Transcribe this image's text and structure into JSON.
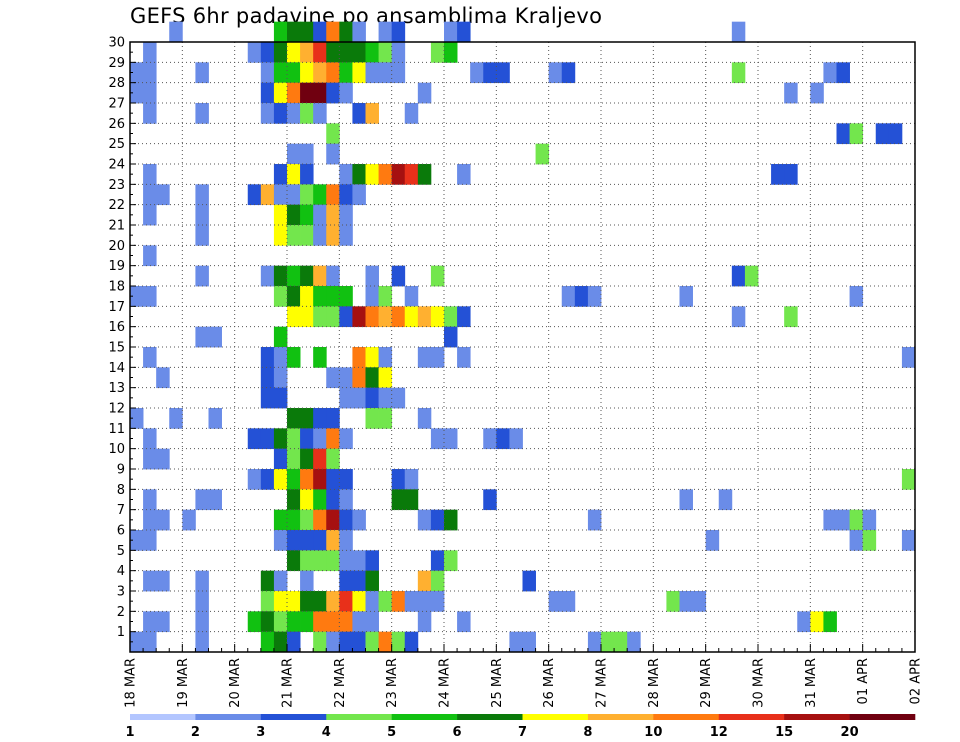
{
  "chart_data": {
    "type": "heatmap",
    "title": "GEFS 6hr padavine po ansamblima Kraljevo",
    "xlabel": "",
    "ylabel": "",
    "x_ticks": [
      "18 MAR",
      "19 MAR",
      "20 MAR",
      "21 MAR",
      "22 MAR",
      "23 MAR",
      "24 MAR",
      "25 MAR",
      "26 MAR",
      "27 MAR",
      "28 MAR",
      "29 MAR",
      "30 MAR",
      "31 MAR",
      "01 APR",
      "02 APR"
    ],
    "x_steps_per_day": 4,
    "x_range": [
      0,
      60
    ],
    "y_ticks": [
      "1",
      "2",
      "3",
      "4",
      "5",
      "6",
      "7",
      "8",
      "9",
      "10",
      "11",
      "12",
      "13",
      "14",
      "15",
      "16",
      "17",
      "18",
      "19",
      "20",
      "21",
      "22",
      "23",
      "24",
      "25",
      "26",
      "27",
      "28",
      "29",
      "30"
    ],
    "y_range": [
      0,
      30
    ],
    "grid": true,
    "colorbar": {
      "labels": [
        "1",
        "2",
        "3",
        "4",
        "5",
        "6",
        "7",
        "8",
        "10",
        "12",
        "15",
        "20"
      ],
      "colors": [
        "#b3c6ff",
        "#6a8ce8",
        "#2451d6",
        "#73e64d",
        "#11c111",
        "#0a7a0a",
        "#ffff00",
        "#ffb030",
        "#ff7a10",
        "#e8301a",
        "#a61010",
        "#700010"
      ]
    },
    "cells": [
      [
        3,
        30,
        1
      ],
      [
        11,
        30,
        4
      ],
      [
        12,
        30,
        5
      ],
      [
        13,
        30,
        5
      ],
      [
        14,
        30,
        2
      ],
      [
        15,
        30,
        8
      ],
      [
        16,
        30,
        5
      ],
      [
        17,
        30,
        1
      ],
      [
        19,
        30,
        1
      ],
      [
        20,
        30,
        2
      ],
      [
        24,
        30,
        1
      ],
      [
        25,
        30,
        2
      ],
      [
        46,
        30,
        1
      ],
      [
        1,
        29,
        1
      ],
      [
        9,
        29,
        1
      ],
      [
        10,
        29,
        2
      ],
      [
        11,
        29,
        5
      ],
      [
        12,
        29,
        6
      ],
      [
        13,
        29,
        7
      ],
      [
        14,
        29,
        9
      ],
      [
        15,
        29,
        5
      ],
      [
        16,
        29,
        5
      ],
      [
        17,
        29,
        5
      ],
      [
        18,
        29,
        4
      ],
      [
        19,
        29,
        3
      ],
      [
        20,
        29,
        1
      ],
      [
        23,
        29,
        3
      ],
      [
        24,
        29,
        4
      ],
      [
        0,
        28,
        1
      ],
      [
        1,
        28,
        1
      ],
      [
        5,
        28,
        1
      ],
      [
        10,
        28,
        1
      ],
      [
        11,
        28,
        4
      ],
      [
        12,
        28,
        4
      ],
      [
        13,
        28,
        6
      ],
      [
        14,
        28,
        7
      ],
      [
        15,
        28,
        8
      ],
      [
        16,
        28,
        4
      ],
      [
        17,
        28,
        6
      ],
      [
        18,
        28,
        1
      ],
      [
        19,
        28,
        1
      ],
      [
        20,
        28,
        1
      ],
      [
        26,
        28,
        1
      ],
      [
        27,
        28,
        2
      ],
      [
        28,
        28,
        2
      ],
      [
        32,
        28,
        1
      ],
      [
        33,
        28,
        2
      ],
      [
        46,
        28,
        3
      ],
      [
        53,
        28,
        1
      ],
      [
        54,
        28,
        2
      ],
      [
        0,
        27,
        1
      ],
      [
        1,
        27,
        1
      ],
      [
        10,
        27,
        2
      ],
      [
        11,
        27,
        6
      ],
      [
        12,
        27,
        8
      ],
      [
        13,
        27,
        11
      ],
      [
        14,
        27,
        11
      ],
      [
        15,
        27,
        2
      ],
      [
        16,
        27,
        1
      ],
      [
        22,
        27,
        1
      ],
      [
        50,
        27,
        1
      ],
      [
        52,
        27,
        1
      ],
      [
        1,
        26,
        1
      ],
      [
        5,
        26,
        1
      ],
      [
        10,
        26,
        1
      ],
      [
        11,
        26,
        2
      ],
      [
        12,
        26,
        1
      ],
      [
        13,
        26,
        3
      ],
      [
        14,
        26,
        1
      ],
      [
        17,
        26,
        2
      ],
      [
        18,
        26,
        7
      ],
      [
        21,
        26,
        1
      ],
      [
        15,
        25,
        3
      ],
      [
        54,
        25,
        2
      ],
      [
        55,
        25,
        3
      ],
      [
        57,
        25,
        2
      ],
      [
        58,
        25,
        2
      ],
      [
        12,
        24,
        1
      ],
      [
        13,
        24,
        1
      ],
      [
        15,
        24,
        1
      ],
      [
        31,
        24,
        3
      ],
      [
        1,
        23,
        1
      ],
      [
        11,
        23,
        2
      ],
      [
        12,
        23,
        6
      ],
      [
        13,
        23,
        2
      ],
      [
        16,
        23,
        1
      ],
      [
        17,
        23,
        5
      ],
      [
        18,
        23,
        6
      ],
      [
        19,
        23,
        8
      ],
      [
        20,
        23,
        10
      ],
      [
        21,
        23,
        9
      ],
      [
        22,
        23,
        5
      ],
      [
        25,
        23,
        1
      ],
      [
        49,
        23,
        2
      ],
      [
        50,
        23,
        2
      ],
      [
        1,
        22,
        1
      ],
      [
        2,
        22,
        1
      ],
      [
        5,
        22,
        1
      ],
      [
        9,
        22,
        2
      ],
      [
        10,
        22,
        7
      ],
      [
        11,
        22,
        1
      ],
      [
        12,
        22,
        1
      ],
      [
        13,
        22,
        3
      ],
      [
        14,
        22,
        4
      ],
      [
        15,
        22,
        8
      ],
      [
        16,
        22,
        2
      ],
      [
        17,
        22,
        1
      ],
      [
        1,
        21,
        1
      ],
      [
        5,
        21,
        1
      ],
      [
        11,
        21,
        6
      ],
      [
        12,
        21,
        5
      ],
      [
        13,
        21,
        4
      ],
      [
        14,
        21,
        1
      ],
      [
        15,
        21,
        7
      ],
      [
        16,
        21,
        1
      ],
      [
        5,
        20,
        1
      ],
      [
        11,
        20,
        6
      ],
      [
        12,
        20,
        3
      ],
      [
        13,
        20,
        3
      ],
      [
        14,
        20,
        1
      ],
      [
        15,
        20,
        7
      ],
      [
        16,
        20,
        1
      ],
      [
        1,
        19,
        1
      ],
      [
        5,
        18,
        1
      ],
      [
        10,
        18,
        1
      ],
      [
        11,
        18,
        5
      ],
      [
        12,
        18,
        4
      ],
      [
        13,
        18,
        5
      ],
      [
        14,
        18,
        7
      ],
      [
        15,
        18,
        1
      ],
      [
        18,
        18,
        1
      ],
      [
        20,
        18,
        2
      ],
      [
        23,
        18,
        3
      ],
      [
        46,
        18,
        2
      ],
      [
        47,
        18,
        3
      ],
      [
        0,
        17,
        1
      ],
      [
        1,
        17,
        1
      ],
      [
        11,
        17,
        3
      ],
      [
        12,
        17,
        5
      ],
      [
        13,
        17,
        6
      ],
      [
        14,
        17,
        4
      ],
      [
        15,
        17,
        4
      ],
      [
        16,
        17,
        4
      ],
      [
        18,
        17,
        1
      ],
      [
        19,
        17,
        3
      ],
      [
        21,
        17,
        1
      ],
      [
        33,
        17,
        1
      ],
      [
        34,
        17,
        2
      ],
      [
        35,
        17,
        1
      ],
      [
        42,
        17,
        1
      ],
      [
        55,
        17,
        1
      ],
      [
        12,
        16,
        6
      ],
      [
        13,
        16,
        6
      ],
      [
        14,
        16,
        3
      ],
      [
        15,
        16,
        3
      ],
      [
        16,
        16,
        2
      ],
      [
        17,
        16,
        10
      ],
      [
        18,
        16,
        8
      ],
      [
        19,
        16,
        7
      ],
      [
        20,
        16,
        8
      ],
      [
        21,
        16,
        6
      ],
      [
        22,
        16,
        7
      ],
      [
        23,
        16,
        6
      ],
      [
        24,
        16,
        3
      ],
      [
        25,
        16,
        2
      ],
      [
        46,
        16,
        1
      ],
      [
        50,
        16,
        3
      ],
      [
        5,
        15,
        1
      ],
      [
        6,
        15,
        1
      ],
      [
        11,
        15,
        4
      ],
      [
        24,
        15,
        2
      ],
      [
        1,
        14,
        1
      ],
      [
        10,
        14,
        2
      ],
      [
        11,
        14,
        1
      ],
      [
        12,
        14,
        4
      ],
      [
        14,
        14,
        4
      ],
      [
        17,
        14,
        8
      ],
      [
        18,
        14,
        6
      ],
      [
        19,
        14,
        1
      ],
      [
        22,
        14,
        1
      ],
      [
        23,
        14,
        1
      ],
      [
        25,
        14,
        1
      ],
      [
        59,
        14,
        1
      ],
      [
        2,
        13,
        1
      ],
      [
        10,
        13,
        2
      ],
      [
        11,
        13,
        1
      ],
      [
        15,
        13,
        1
      ],
      [
        16,
        13,
        1
      ],
      [
        17,
        13,
        8
      ],
      [
        18,
        13,
        5
      ],
      [
        19,
        13,
        6
      ],
      [
        10,
        12,
        2
      ],
      [
        11,
        12,
        2
      ],
      [
        16,
        12,
        1
      ],
      [
        17,
        12,
        1
      ],
      [
        18,
        12,
        2
      ],
      [
        19,
        12,
        1
      ],
      [
        20,
        12,
        1
      ],
      [
        0,
        11,
        1
      ],
      [
        3,
        11,
        1
      ],
      [
        6,
        11,
        1
      ],
      [
        12,
        11,
        5
      ],
      [
        13,
        11,
        5
      ],
      [
        14,
        11,
        2
      ],
      [
        15,
        11,
        2
      ],
      [
        18,
        11,
        3
      ],
      [
        19,
        11,
        3
      ],
      [
        22,
        11,
        1
      ],
      [
        1,
        10,
        1
      ],
      [
        9,
        10,
        2
      ],
      [
        10,
        10,
        2
      ],
      [
        11,
        10,
        5
      ],
      [
        12,
        10,
        3
      ],
      [
        13,
        10,
        2
      ],
      [
        14,
        10,
        1
      ],
      [
        15,
        10,
        8
      ],
      [
        16,
        10,
        1
      ],
      [
        23,
        10,
        1
      ],
      [
        24,
        10,
        1
      ],
      [
        27,
        10,
        1
      ],
      [
        28,
        10,
        2
      ],
      [
        29,
        10,
        1
      ],
      [
        1,
        9,
        1
      ],
      [
        2,
        9,
        1
      ],
      [
        11,
        9,
        2
      ],
      [
        12,
        9,
        3
      ],
      [
        13,
        9,
        5
      ],
      [
        14,
        9,
        9
      ],
      [
        15,
        9,
        3
      ],
      [
        9,
        8,
        1
      ],
      [
        10,
        8,
        2
      ],
      [
        11,
        8,
        6
      ],
      [
        12,
        8,
        4
      ],
      [
        13,
        8,
        8
      ],
      [
        14,
        8,
        10
      ],
      [
        15,
        8,
        2
      ],
      [
        16,
        8,
        2
      ],
      [
        20,
        8,
        2
      ],
      [
        21,
        8,
        1
      ],
      [
        59,
        8,
        3
      ],
      [
        1,
        7,
        1
      ],
      [
        5,
        7,
        1
      ],
      [
        6,
        7,
        1
      ],
      [
        12,
        7,
        5
      ],
      [
        13,
        7,
        6
      ],
      [
        14,
        7,
        4
      ],
      [
        15,
        7,
        2
      ],
      [
        16,
        7,
        1
      ],
      [
        20,
        7,
        5
      ],
      [
        21,
        7,
        5
      ],
      [
        27,
        7,
        2
      ],
      [
        42,
        7,
        1
      ],
      [
        45,
        7,
        1
      ],
      [
        1,
        6,
        1
      ],
      [
        2,
        6,
        1
      ],
      [
        4,
        6,
        1
      ],
      [
        11,
        6,
        4
      ],
      [
        12,
        6,
        4
      ],
      [
        13,
        6,
        3
      ],
      [
        14,
        6,
        8
      ],
      [
        15,
        6,
        10
      ],
      [
        16,
        6,
        2
      ],
      [
        17,
        6,
        1
      ],
      [
        22,
        6,
        1
      ],
      [
        23,
        6,
        2
      ],
      [
        24,
        6,
        5
      ],
      [
        35,
        6,
        1
      ],
      [
        53,
        6,
        1
      ],
      [
        54,
        6,
        1
      ],
      [
        55,
        6,
        3
      ],
      [
        56,
        6,
        1
      ],
      [
        0,
        5,
        1
      ],
      [
        1,
        5,
        1
      ],
      [
        11,
        5,
        1
      ],
      [
        12,
        5,
        2
      ],
      [
        13,
        5,
        2
      ],
      [
        14,
        5,
        2
      ],
      [
        15,
        5,
        7
      ],
      [
        16,
        5,
        1
      ],
      [
        44,
        5,
        1
      ],
      [
        55,
        5,
        1
      ],
      [
        56,
        5,
        3
      ],
      [
        59,
        5,
        1
      ],
      [
        12,
        4,
        5
      ],
      [
        13,
        4,
        3
      ],
      [
        14,
        4,
        3
      ],
      [
        15,
        4,
        3
      ],
      [
        16,
        4,
        1
      ],
      [
        17,
        4,
        1
      ],
      [
        18,
        4,
        2
      ],
      [
        23,
        4,
        2
      ],
      [
        24,
        4,
        3
      ],
      [
        1,
        3,
        1
      ],
      [
        2,
        3,
        1
      ],
      [
        5,
        3,
        1
      ],
      [
        10,
        3,
        5
      ],
      [
        11,
        3,
        1
      ],
      [
        13,
        3,
        1
      ],
      [
        16,
        3,
        2
      ],
      [
        17,
        3,
        2
      ],
      [
        18,
        3,
        5
      ],
      [
        22,
        3,
        7
      ],
      [
        23,
        3,
        3
      ],
      [
        30,
        3,
        2
      ],
      [
        5,
        2,
        1
      ],
      [
        10,
        2,
        3
      ],
      [
        11,
        2,
        6
      ],
      [
        12,
        2,
        6
      ],
      [
        13,
        2,
        5
      ],
      [
        14,
        2,
        5
      ],
      [
        15,
        2,
        7
      ],
      [
        16,
        2,
        9
      ],
      [
        17,
        2,
        6
      ],
      [
        18,
        2,
        1
      ],
      [
        19,
        2,
        3
      ],
      [
        20,
        2,
        8
      ],
      [
        21,
        2,
        1
      ],
      [
        22,
        2,
        1
      ],
      [
        23,
        2,
        1
      ],
      [
        32,
        2,
        1
      ],
      [
        33,
        2,
        1
      ],
      [
        41,
        2,
        3
      ],
      [
        42,
        2,
        1
      ],
      [
        43,
        2,
        1
      ],
      [
        1,
        1,
        1
      ],
      [
        2,
        1,
        1
      ],
      [
        5,
        1,
        1
      ],
      [
        9,
        1,
        4
      ],
      [
        10,
        1,
        5
      ],
      [
        11,
        1,
        3
      ],
      [
        12,
        1,
        4
      ],
      [
        13,
        1,
        4
      ],
      [
        14,
        1,
        8
      ],
      [
        15,
        1,
        8
      ],
      [
        16,
        1,
        8
      ],
      [
        17,
        1,
        1
      ],
      [
        18,
        1,
        1
      ],
      [
        22,
        1,
        1
      ],
      [
        25,
        1,
        1
      ],
      [
        51,
        1,
        1
      ],
      [
        52,
        1,
        6
      ],
      [
        53,
        1,
        4
      ],
      [
        0,
        0,
        1
      ],
      [
        1,
        0,
        1
      ],
      [
        5,
        0,
        1
      ],
      [
        10,
        0,
        4
      ],
      [
        11,
        0,
        5
      ],
      [
        12,
        0,
        2
      ],
      [
        14,
        0,
        3
      ],
      [
        15,
        0,
        1
      ],
      [
        16,
        0,
        2
      ],
      [
        17,
        0,
        2
      ],
      [
        18,
        0,
        3
      ],
      [
        19,
        0,
        8
      ],
      [
        20,
        0,
        3
      ],
      [
        21,
        0,
        2
      ],
      [
        29,
        0,
        1
      ],
      [
        30,
        0,
        1
      ],
      [
        35,
        0,
        1
      ],
      [
        36,
        0,
        3
      ],
      [
        37,
        0,
        3
      ],
      [
        38,
        0,
        1
      ]
    ]
  }
}
